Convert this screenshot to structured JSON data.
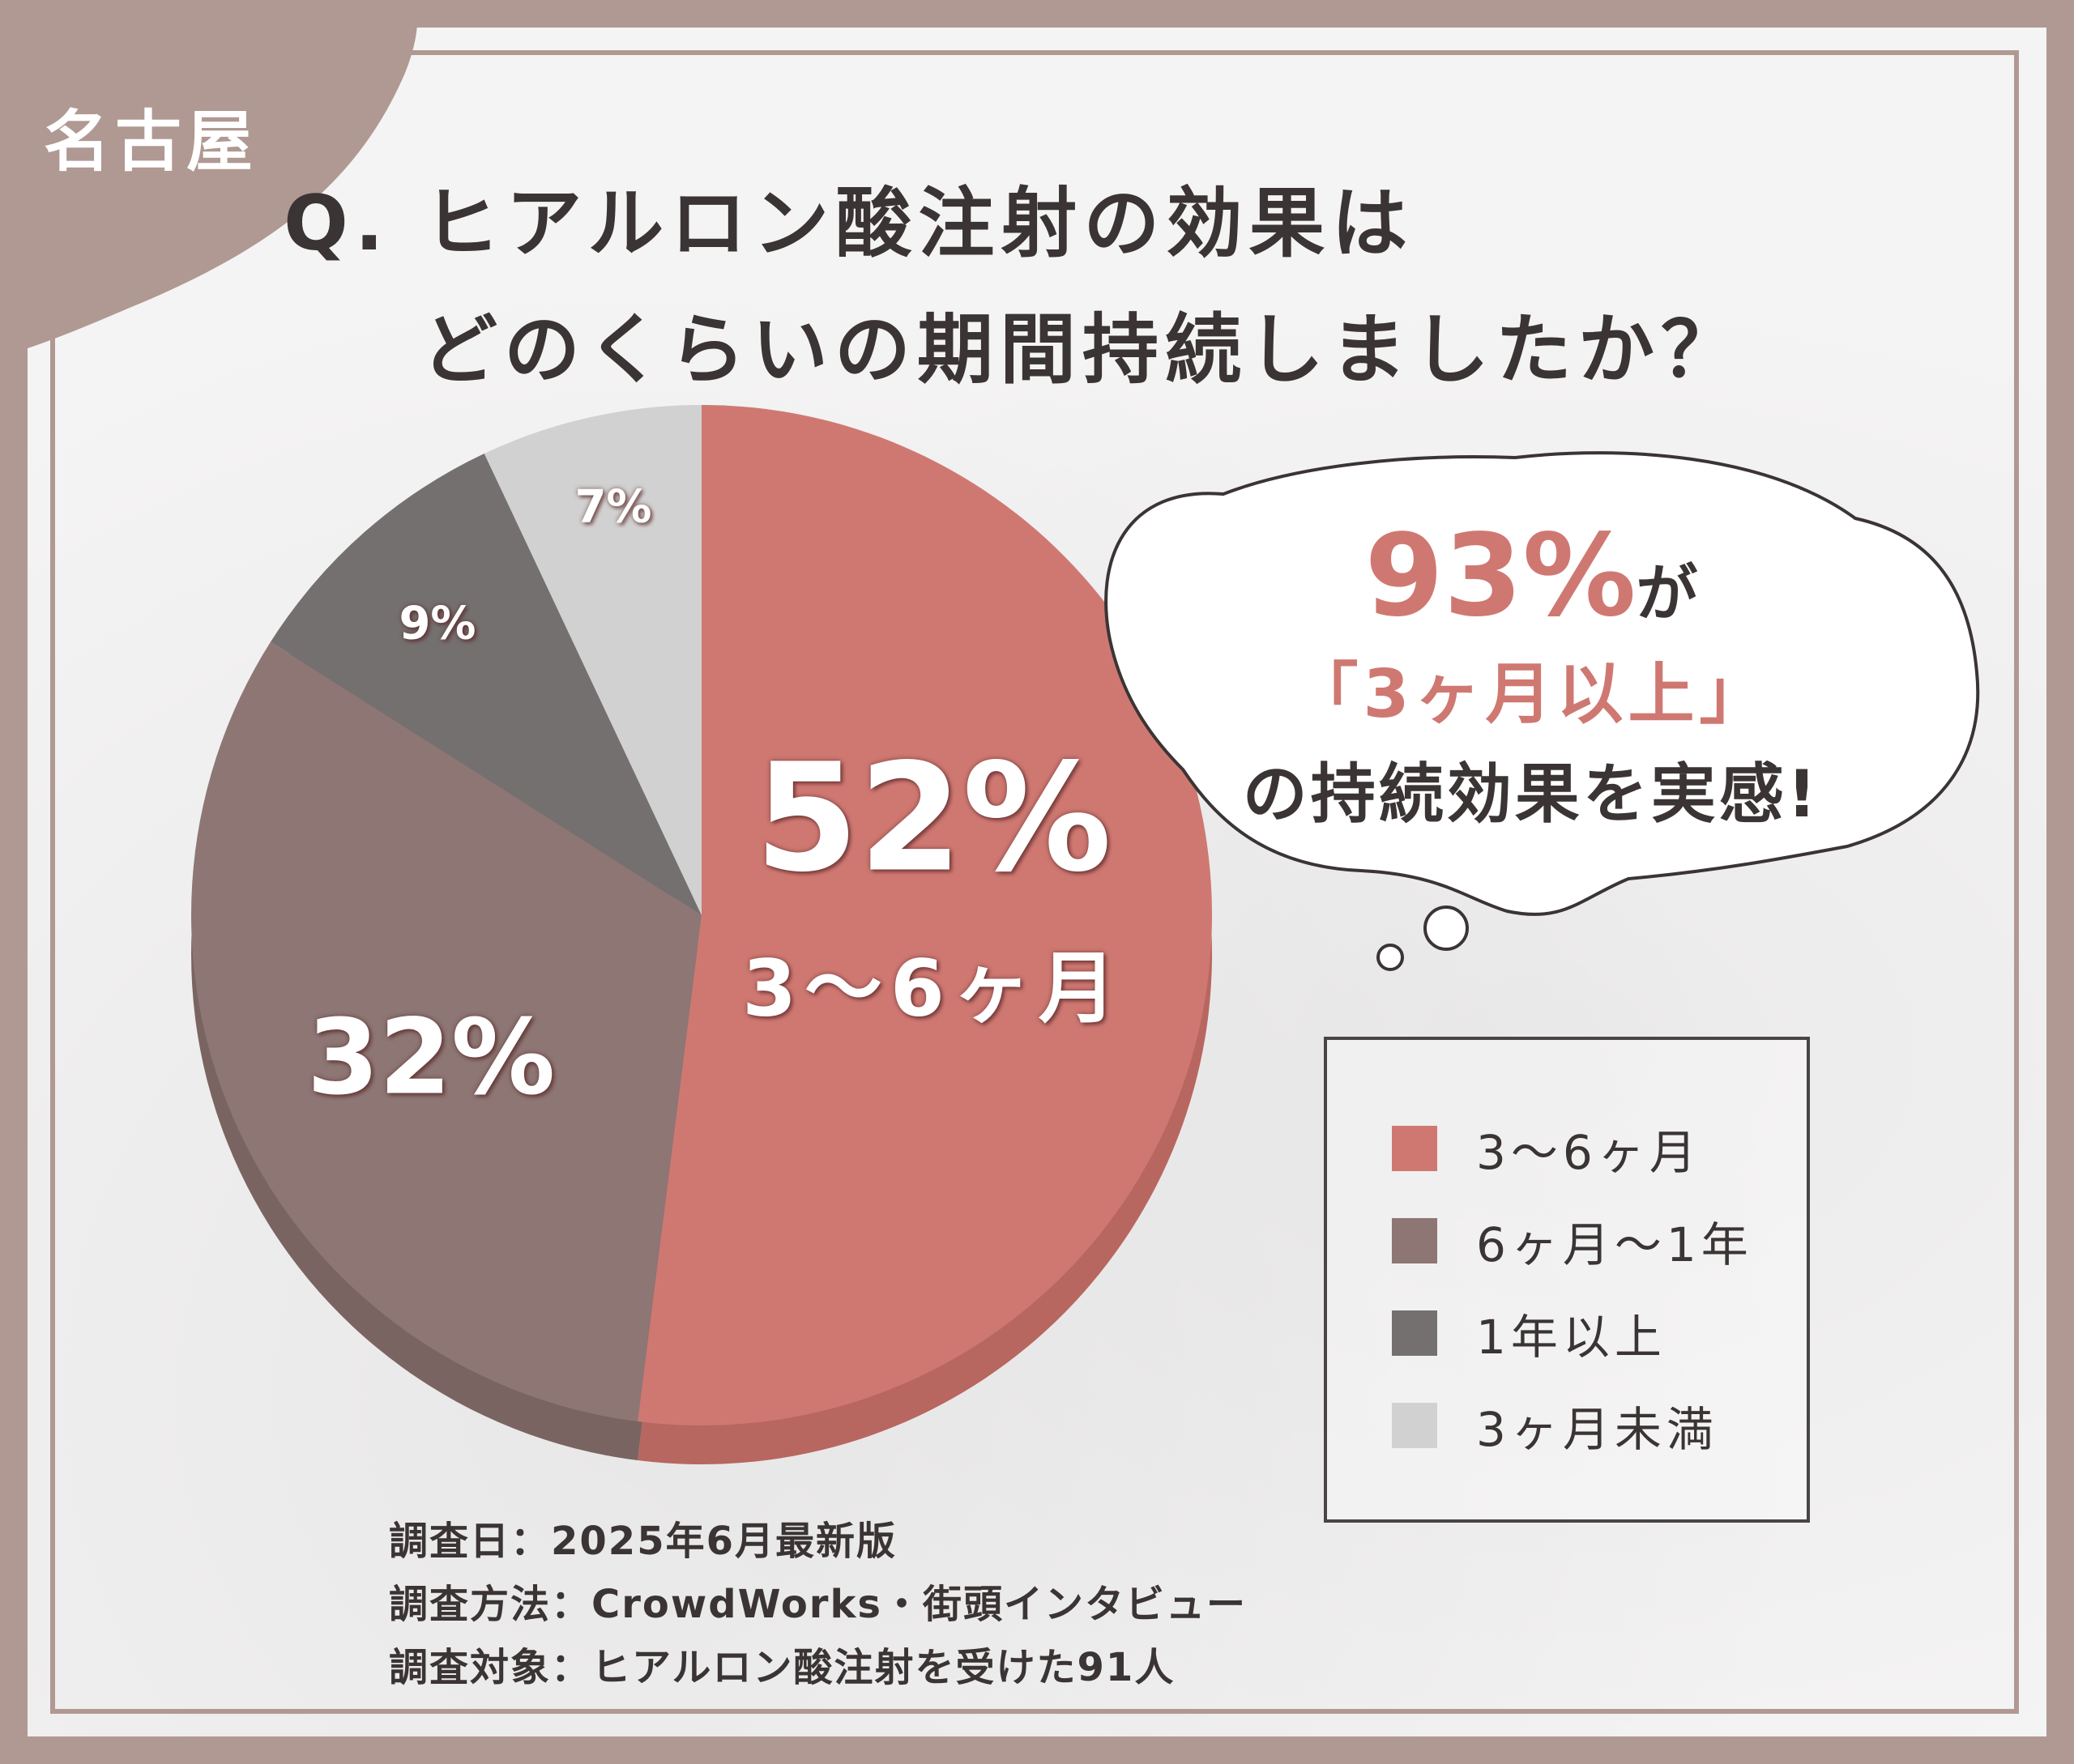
{
  "region_tag": "名古屋",
  "title": {
    "line1": "Q. ヒアルロン酸注射の効果は",
    "line2": "どのくらいの期間持続しましたか？"
  },
  "callout": {
    "highlight": "93%",
    "highlight_suffix": "が",
    "line2": "「3ヶ月以上」",
    "line3": "の持続効果を実感!"
  },
  "notes": [
    "調査日：2025年6月最新版",
    "調査方法：CrowdWorks・街頭インタビュー",
    "調査対象：ヒアルロン酸注射を受けた91人"
  ],
  "colors": {
    "accent": "#cf7872",
    "frame": "#b09993",
    "text": "#3b3434"
  },
  "chart_data": {
    "type": "pie",
    "title": "",
    "slices": [
      {
        "name": "3〜6ヶ月",
        "value": 52,
        "label": "52%",
        "sublabel": "3〜6ヶ月",
        "color": "#cf7872",
        "side": "#b86660"
      },
      {
        "name": "6ヶ月〜1年",
        "value": 32,
        "label": "32%",
        "color": "#8d7674",
        "side": "#7a6461"
      },
      {
        "name": "1年以上",
        "value": 9,
        "label": "9%",
        "color": "#757070",
        "side": "#625d5d"
      },
      {
        "name": "3ヶ月未満",
        "value": 7,
        "label": "7%",
        "color": "#d2d1d1",
        "side": "#b8b6b6"
      }
    ],
    "legend_position": "bottom-right"
  }
}
